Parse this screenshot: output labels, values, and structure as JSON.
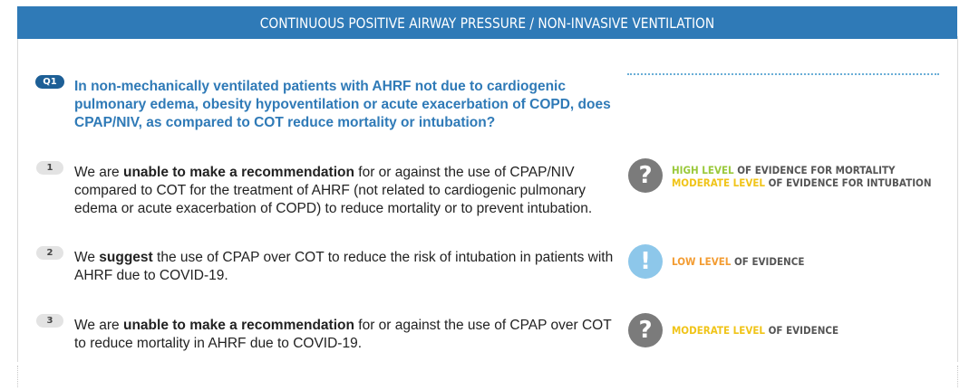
{
  "header": {
    "title": "CONTINUOUS POSITIVE AIRWAY PRESSURE / NON-INVASIVE VENTILATION"
  },
  "question": {
    "badge": "Q1",
    "text": "In non-mechanically ventilated patients with AHRF not due to cardiogenic pulmonary edema, obesity hypoventilation or acute exacerbation of COPD, does CPAP/NIV, as compared to COT reduce mortality or intubation?"
  },
  "recommendations": [
    {
      "number": "1",
      "parts": [
        "We are ",
        "unable to make a recommendation",
        " for or against the use of CPAP/NIV compared to COT for the treatment of AHRF (not related to cardiogenic pulmonary edema or acute exacerbation of COPD) to reduce mortality or to prevent intubation."
      ],
      "icon": "question-mark-icon",
      "icon_glyph": "?",
      "evidence": [
        {
          "level": "HIGH LEVEL",
          "level_color": "#9ac93b",
          "rest": " OF EVIDENCE FOR MORTALITY"
        },
        {
          "level": "MODERATE LEVEL",
          "level_color": "#f0c419",
          "rest": " OF EVIDENCE FOR INTUBATION"
        }
      ]
    },
    {
      "number": "2",
      "parts": [
        "We ",
        "suggest",
        " the use of CPAP over COT to reduce the risk of intubation in patients with AHRF due to COVID-19."
      ],
      "icon": "exclamation-icon",
      "icon_glyph": "!",
      "evidence": [
        {
          "level": "LOW LEVEL",
          "level_color": "#f39c32",
          "rest": " OF EVIDENCE"
        }
      ]
    },
    {
      "number": "3",
      "parts": [
        "We are ",
        "unable to make a recommendation",
        " for or against the use of CPAP over COT to reduce mortality in AHRF due to COVID-19."
      ],
      "icon": "question-mark-icon",
      "icon_glyph": "?",
      "evidence": [
        {
          "level": "MODERATE LEVEL",
          "level_color": "#f0c419",
          "rest": " OF EVIDENCE"
        }
      ]
    }
  ],
  "colors": {
    "header_bg": "#2f7ab7",
    "question_text": "#2f7ab7",
    "question_badge": "#1d5f96",
    "evidence_rest": "#555555"
  }
}
